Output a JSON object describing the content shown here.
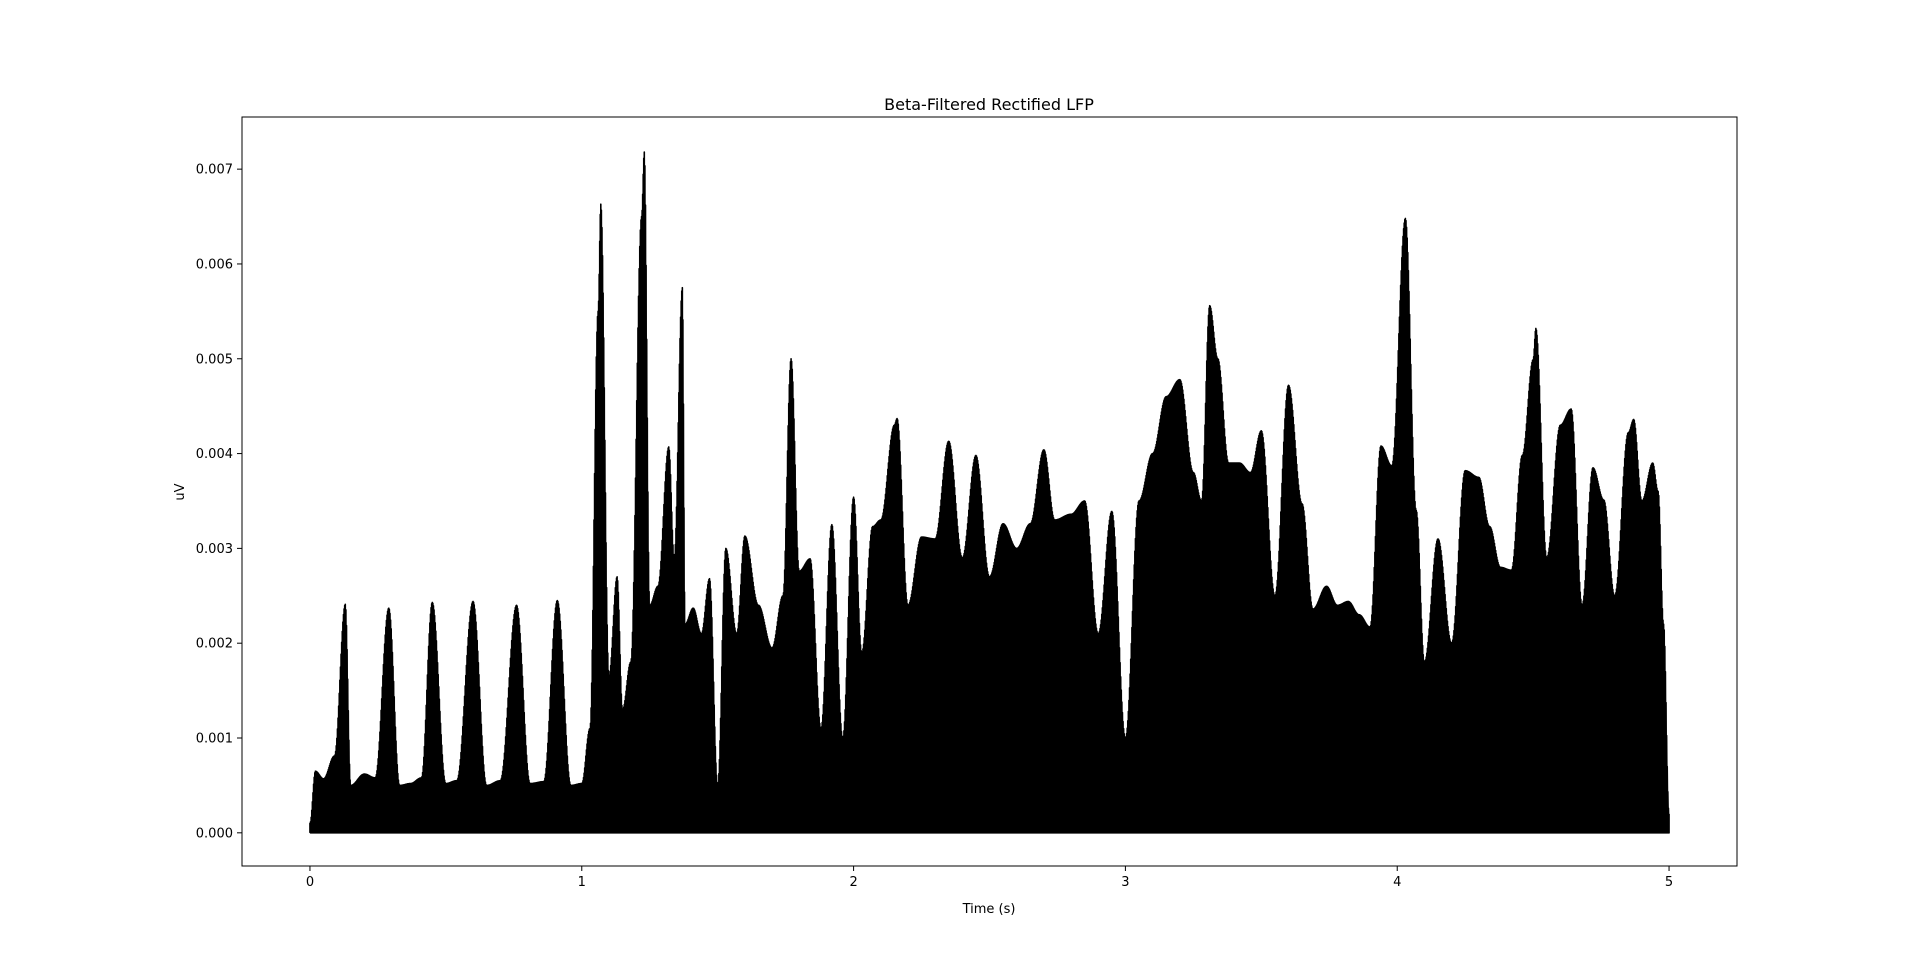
{
  "chart_data": {
    "type": "line",
    "title": "Beta-Filtered Rectified LFP",
    "xlabel": "Time (s)",
    "ylabel": "uV",
    "xlim": [
      -0.25,
      5.25
    ],
    "ylim": [
      -0.00035,
      0.00755
    ],
    "grid": false,
    "legend": "none",
    "line_color": "#000000",
    "x_ticks": [
      {
        "value": 0,
        "label": "0"
      },
      {
        "value": 1,
        "label": "1"
      },
      {
        "value": 2,
        "label": "2"
      },
      {
        "value": 3,
        "label": "3"
      },
      {
        "value": 4,
        "label": "4"
      },
      {
        "value": 5,
        "label": "5"
      }
    ],
    "y_ticks": [
      {
        "value": 0,
        "label": "0.000"
      },
      {
        "value": 0.001,
        "label": "0.001"
      },
      {
        "value": 0.002,
        "label": "0.002"
      },
      {
        "value": 0.003,
        "label": "0.003"
      },
      {
        "value": 0.004,
        "label": "0.004"
      },
      {
        "value": 0.005,
        "label": "0.005"
      },
      {
        "value": 0.006,
        "label": "0.006"
      },
      {
        "value": 0.007,
        "label": "0.007"
      }
    ],
    "series": [
      {
        "x": [
          0.0,
          0.02,
          0.05,
          0.09,
          0.13,
          0.15,
          0.2,
          0.24,
          0.29,
          0.33,
          0.37,
          0.41,
          0.45,
          0.5,
          0.54,
          0.6,
          0.65,
          0.7,
          0.76,
          0.81,
          0.86,
          0.91,
          0.96,
          1.0,
          1.03,
          1.06,
          1.07,
          1.1,
          1.13,
          1.15,
          1.18,
          1.22,
          1.23,
          1.25,
          1.28,
          1.32,
          1.34,
          1.37,
          1.38,
          1.41,
          1.44,
          1.47,
          1.5,
          1.53,
          1.57,
          1.6,
          1.65,
          1.7,
          1.74,
          1.77,
          1.8,
          1.84,
          1.88,
          1.92,
          1.96,
          2.0,
          2.03,
          2.07,
          2.1,
          2.15,
          2.16,
          2.2,
          2.25,
          2.3,
          2.35,
          2.4,
          2.45,
          2.5,
          2.55,
          2.6,
          2.65,
          2.7,
          2.74,
          2.8,
          2.85,
          2.9,
          2.95,
          3.0,
          3.05,
          3.1,
          3.15,
          3.2,
          3.25,
          3.28,
          3.31,
          3.34,
          3.38,
          3.42,
          3.46,
          3.5,
          3.55,
          3.6,
          3.65,
          3.69,
          3.74,
          3.78,
          3.82,
          3.86,
          3.9,
          3.94,
          3.98,
          4.03,
          4.07,
          4.1,
          4.15,
          4.2,
          4.25,
          4.3,
          4.34,
          4.38,
          4.42,
          4.46,
          4.5,
          4.51,
          4.55,
          4.6,
          4.64,
          4.68,
          4.72,
          4.76,
          4.8,
          4.85,
          4.87,
          4.9,
          4.94,
          4.96,
          4.98,
          5.0
        ],
        "y": [
          0.0001,
          0.00065,
          0.00057,
          0.00081,
          0.00241,
          0.0005,
          0.00062,
          0.00058,
          0.00237,
          0.0005,
          0.00052,
          0.00058,
          0.00243,
          0.00052,
          0.00055,
          0.00244,
          0.0005,
          0.00055,
          0.0024,
          0.00052,
          0.00054,
          0.00245,
          0.0005,
          0.00052,
          0.0011,
          0.0055,
          0.00663,
          0.00165,
          0.0027,
          0.0013,
          0.0018,
          0.0065,
          0.00718,
          0.0024,
          0.0026,
          0.00407,
          0.0029,
          0.00575,
          0.0022,
          0.00237,
          0.0021,
          0.00268,
          0.0005,
          0.003,
          0.0021,
          0.00313,
          0.0024,
          0.00195,
          0.0025,
          0.005,
          0.00276,
          0.00289,
          0.0011,
          0.00325,
          0.001,
          0.00354,
          0.0019,
          0.00323,
          0.0033,
          0.0043,
          0.00437,
          0.0024,
          0.00312,
          0.0031,
          0.00413,
          0.0029,
          0.00398,
          0.0027,
          0.00326,
          0.003,
          0.00326,
          0.00404,
          0.0033,
          0.00336,
          0.0035,
          0.0021,
          0.00339,
          0.001,
          0.0035,
          0.004,
          0.0046,
          0.00478,
          0.0038,
          0.0035,
          0.00556,
          0.005,
          0.0039,
          0.0039,
          0.0038,
          0.00424,
          0.0025,
          0.00472,
          0.00347,
          0.00236,
          0.0026,
          0.0024,
          0.00244,
          0.0023,
          0.00217,
          0.00408,
          0.00387,
          0.00648,
          0.0034,
          0.0018,
          0.0031,
          0.002,
          0.00382,
          0.00375,
          0.00323,
          0.0028,
          0.00277,
          0.00398,
          0.00499,
          0.00532,
          0.0029,
          0.0043,
          0.00447,
          0.0024,
          0.00385,
          0.00351,
          0.0025,
          0.00422,
          0.00436,
          0.0035,
          0.0039,
          0.0036,
          0.0022,
          0.0002
        ]
      }
    ]
  }
}
